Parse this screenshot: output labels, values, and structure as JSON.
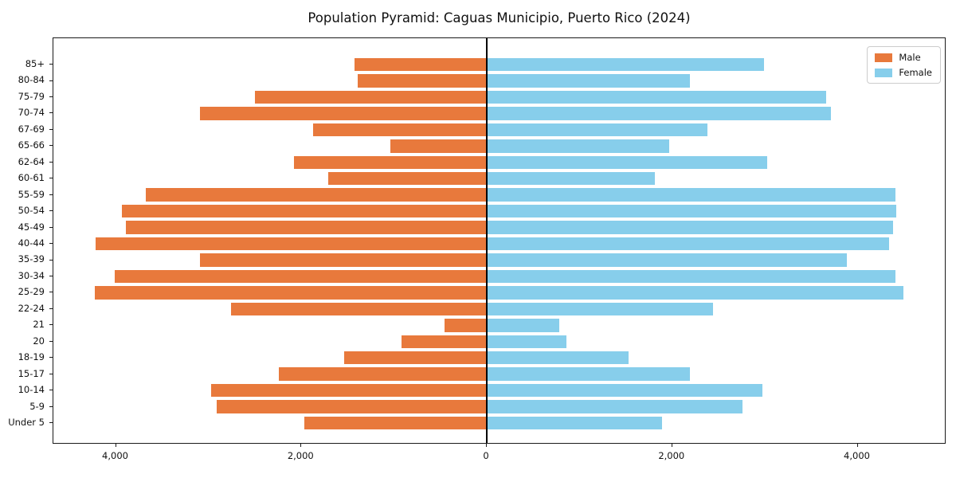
{
  "title": "Population Pyramid: Caguas Municipio, Puerto Rico (2024)",
  "legend": {
    "male_label": "Male",
    "female_label": "Female"
  },
  "colors": {
    "male": "#E8793C",
    "female": "#87CEEB",
    "axis": "#1a1a1a"
  },
  "x_axis": {
    "ticks": [
      {
        "value": -4000,
        "label": "4,000"
      },
      {
        "value": -2000,
        "label": "2,000"
      },
      {
        "value": 0,
        "label": "0"
      },
      {
        "value": 2000,
        "label": "2,000"
      },
      {
        "value": 4000,
        "label": "4,000"
      }
    ]
  },
  "chart_data": {
    "type": "bar",
    "subtype": "population_pyramid",
    "orientation": "horizontal",
    "title": "Population Pyramid: Caguas Municipio, Puerto Rico (2024)",
    "categories": [
      "85+",
      "80-84",
      "75-79",
      "70-74",
      "67-69",
      "65-66",
      "62-64",
      "60-61",
      "55-59",
      "50-54",
      "45-49",
      "40-44",
      "35-39",
      "30-34",
      "25-29",
      "22-24",
      "21",
      "20",
      "18-19",
      "15-17",
      "10-14",
      "5-9",
      "Under 5"
    ],
    "series": [
      {
        "name": "Male",
        "side": "left",
        "color": "#E8793C",
        "values": [
          1430,
          1390,
          2500,
          3090,
          1870,
          1040,
          2080,
          1710,
          3680,
          3940,
          3890,
          4220,
          3090,
          4010,
          4230,
          2760,
          460,
          920,
          1540,
          2240,
          2970,
          2910,
          1970
        ]
      },
      {
        "name": "Female",
        "side": "right",
        "color": "#87CEEB",
        "values": [
          2990,
          2190,
          3660,
          3710,
          2380,
          1970,
          3020,
          1810,
          4410,
          4420,
          4380,
          4340,
          3880,
          4410,
          4490,
          2440,
          780,
          860,
          1530,
          2190,
          2970,
          2760,
          1890
        ]
      }
    ],
    "xlim": [
      -4670,
      4960
    ],
    "x_tick_values_abs": [
      4000,
      2000,
      0,
      2000,
      4000
    ],
    "legend_position": "upper right",
    "grid": false,
    "note": "Left (orange) values are male counts plotted as negative x; right (blue) are female counts."
  }
}
